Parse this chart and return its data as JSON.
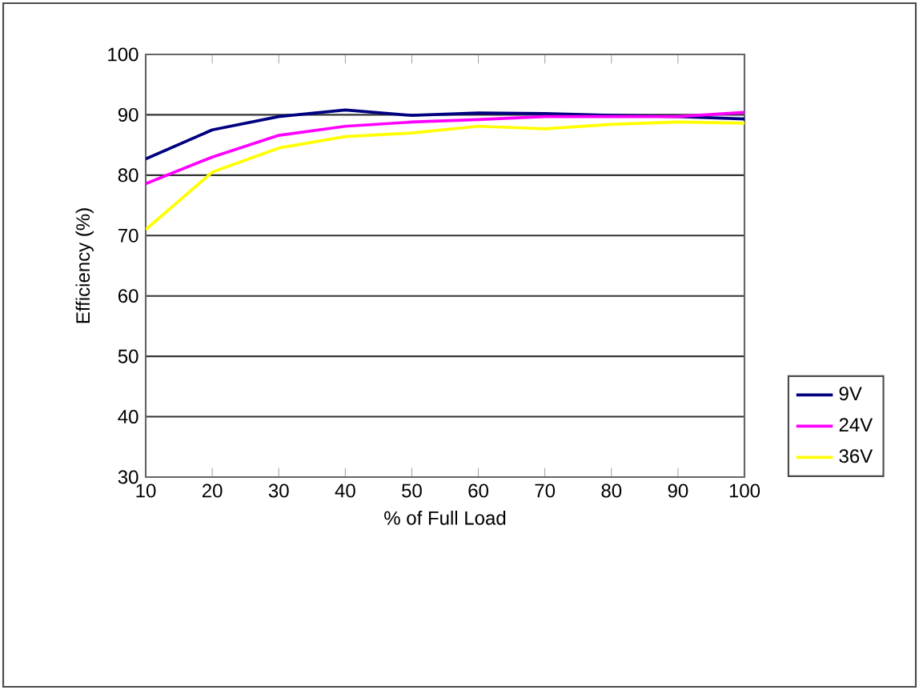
{
  "chart_data": {
    "type": "line",
    "xlabel": "% of Full Load",
    "ylabel": "Efficiency (%)",
    "x": [
      10,
      20,
      30,
      40,
      50,
      60,
      70,
      80,
      90,
      100
    ],
    "series": [
      {
        "name": "9V",
        "color": "#000080",
        "values": [
          82.7,
          87.5,
          89.7,
          90.8,
          89.9,
          90.3,
          90.2,
          89.9,
          89.7,
          89.3
        ]
      },
      {
        "name": "24V",
        "color": "#ff00ff",
        "values": [
          78.6,
          83.0,
          86.6,
          88.1,
          88.8,
          89.2,
          89.7,
          89.7,
          89.7,
          90.4
        ]
      },
      {
        "name": "36V",
        "color": "#ffff00",
        "values": [
          71.0,
          80.5,
          84.5,
          86.4,
          87.0,
          88.1,
          87.7,
          88.4,
          88.8,
          88.6
        ]
      }
    ],
    "xlim": [
      10,
      100
    ],
    "xticks": [
      10,
      20,
      30,
      40,
      50,
      60,
      70,
      80,
      90,
      100
    ],
    "ylim": [
      30,
      100
    ],
    "yticks": [
      30,
      40,
      50,
      60,
      70,
      80,
      90,
      100
    ],
    "grid": "y",
    "legend": "right",
    "marker": "none",
    "line_style": "solid"
  }
}
